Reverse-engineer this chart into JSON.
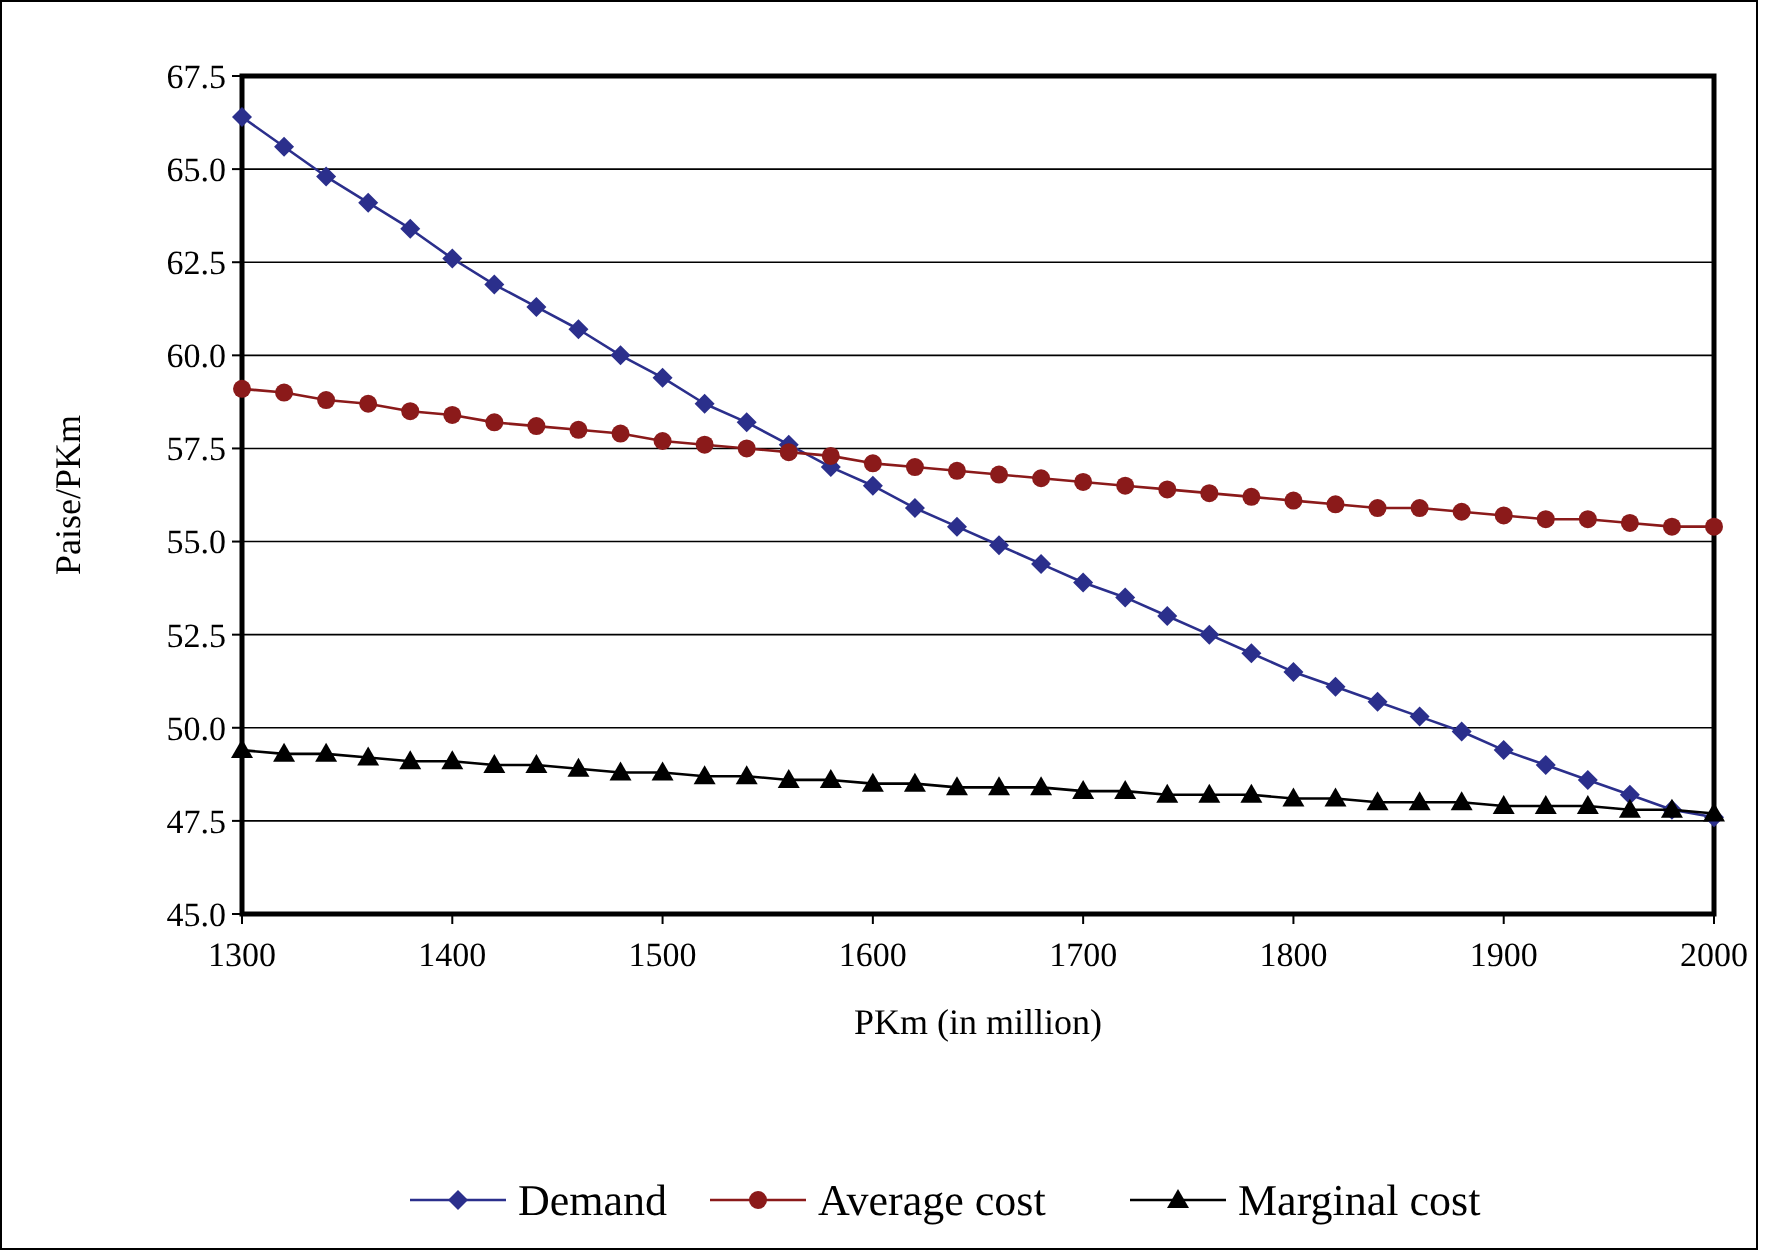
{
  "chart_data": {
    "type": "line",
    "xlabel": "PKm (in million)",
    "ylabel": "Paise/PKm",
    "x": [
      1300,
      1320,
      1340,
      1360,
      1380,
      1400,
      1420,
      1440,
      1460,
      1480,
      1500,
      1520,
      1540,
      1560,
      1580,
      1600,
      1620,
      1640,
      1660,
      1680,
      1700,
      1720,
      1740,
      1760,
      1780,
      1800,
      1820,
      1840,
      1860,
      1880,
      1900,
      1920,
      1940,
      1960,
      1980,
      2000
    ],
    "series": [
      {
        "name": "Demand",
        "color": "#2b2f8c",
        "marker": "diamond",
        "values": [
          66.4,
          65.6,
          64.8,
          64.1,
          63.4,
          62.6,
          61.9,
          61.3,
          60.7,
          60.0,
          59.4,
          58.7,
          58.2,
          57.6,
          57.0,
          56.5,
          55.9,
          55.4,
          54.9,
          54.4,
          53.9,
          53.5,
          53.0,
          52.5,
          52.0,
          51.5,
          51.1,
          50.7,
          50.3,
          49.9,
          49.4,
          49.0,
          48.6,
          48.2,
          47.8,
          47.6
        ]
      },
      {
        "name": "Average cost",
        "color": "#8b1a1a",
        "marker": "circle",
        "values": [
          59.1,
          59.0,
          58.8,
          58.7,
          58.5,
          58.4,
          58.2,
          58.1,
          58.0,
          57.9,
          57.7,
          57.6,
          57.5,
          57.4,
          57.3,
          57.1,
          57.0,
          56.9,
          56.8,
          56.7,
          56.6,
          56.5,
          56.4,
          56.3,
          56.2,
          56.1,
          56.0,
          55.9,
          55.9,
          55.8,
          55.7,
          55.6,
          55.6,
          55.5,
          55.4,
          55.4
        ]
      },
      {
        "name": "Marginal cost",
        "color": "#000000",
        "marker": "triangle",
        "values": [
          49.4,
          49.3,
          49.3,
          49.2,
          49.1,
          49.1,
          49.0,
          49.0,
          48.9,
          48.8,
          48.8,
          48.7,
          48.7,
          48.6,
          48.6,
          48.5,
          48.5,
          48.4,
          48.4,
          48.4,
          48.3,
          48.3,
          48.2,
          48.2,
          48.2,
          48.1,
          48.1,
          48.0,
          48.0,
          48.0,
          47.9,
          47.9,
          47.9,
          47.8,
          47.8,
          47.7
        ]
      }
    ],
    "xlim": [
      1300,
      2000
    ],
    "xticks": [
      1300,
      1400,
      1500,
      1600,
      1700,
      1800,
      1900,
      2000
    ],
    "ylim": [
      45,
      67.5
    ],
    "yticks": [
      {
        "value": 45,
        "label": "45.0"
      },
      {
        "value": 47.5,
        "label": "47.5"
      },
      {
        "value": 50,
        "label": "50.0"
      },
      {
        "value": 52.5,
        "label": "52.5"
      },
      {
        "value": 55,
        "label": "55.0"
      },
      {
        "value": 57.5,
        "label": "57.5"
      },
      {
        "value": 60,
        "label": "60.0"
      },
      {
        "value": 62.5,
        "label": "62.5"
      },
      {
        "value": 65,
        "label": "65.0"
      },
      {
        "value": 67.5,
        "label": "67.5"
      }
    ],
    "grid": "y",
    "legend": "bottom",
    "line_style": "solid"
  }
}
